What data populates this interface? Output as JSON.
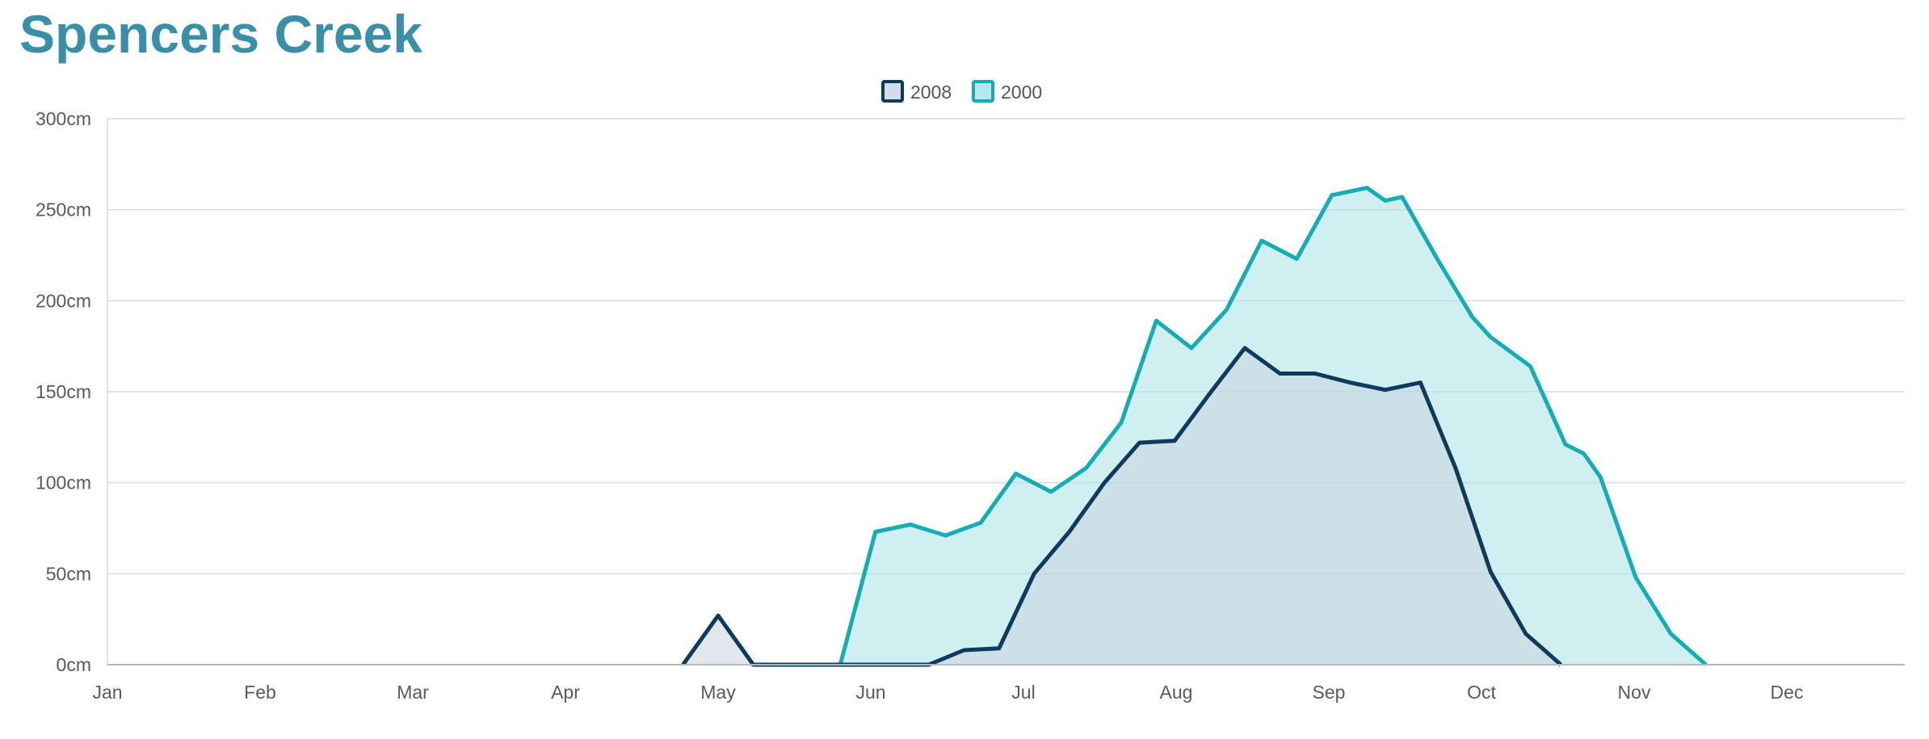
{
  "title": "Spencers Creek",
  "chart_data": {
    "type": "area",
    "title": "Spencers Creek",
    "xlabel": "",
    "ylabel": "",
    "x_tick_labels": [
      "Jan",
      "Feb",
      "Mar",
      "Apr",
      "May",
      "Jun",
      "Jul",
      "Aug",
      "Sep",
      "Oct",
      "Nov",
      "Dec"
    ],
    "y_tick_labels": [
      "0cm",
      "50cm",
      "100cm",
      "150cm",
      "200cm",
      "250cm",
      "300cm"
    ],
    "y_ticks": [
      0,
      50,
      100,
      150,
      200,
      250,
      300
    ],
    "ylim": [
      0,
      300
    ],
    "xlim": [
      1,
      13
    ],
    "x_unit": "month (1 = Jan 1, fractional)",
    "grid": true,
    "legend_position": "top-center",
    "series": [
      {
        "name": "2008",
        "color": "#0d3b5e",
        "fill": "#c8d4de",
        "points": [
          [
            4.77,
            0
          ],
          [
            5.0,
            27
          ],
          [
            5.23,
            0
          ],
          [
            5.46,
            0
          ],
          [
            5.69,
            0
          ],
          [
            5.92,
            0
          ],
          [
            6.15,
            0
          ],
          [
            6.38,
            0
          ],
          [
            6.61,
            8
          ],
          [
            6.84,
            9
          ],
          [
            7.07,
            50
          ],
          [
            7.3,
            73
          ],
          [
            7.53,
            100
          ],
          [
            7.76,
            122
          ],
          [
            7.99,
            123
          ],
          [
            8.22,
            149
          ],
          [
            8.45,
            174
          ],
          [
            8.68,
            160
          ],
          [
            8.91,
            160
          ],
          [
            9.14,
            155
          ],
          [
            9.37,
            151
          ],
          [
            9.6,
            155
          ],
          [
            9.83,
            108
          ],
          [
            10.06,
            51
          ],
          [
            10.29,
            17
          ],
          [
            10.52,
            0
          ]
        ]
      },
      {
        "name": "2000",
        "color": "#14adb5",
        "fill": "#a8e2e5",
        "points": [
          [
            5.8,
            0
          ],
          [
            6.03,
            73
          ],
          [
            6.26,
            77
          ],
          [
            6.49,
            71
          ],
          [
            6.72,
            78
          ],
          [
            6.95,
            105
          ],
          [
            7.18,
            95
          ],
          [
            7.41,
            108
          ],
          [
            7.64,
            133
          ],
          [
            7.87,
            189
          ],
          [
            8.1,
            174
          ],
          [
            8.33,
            195
          ],
          [
            8.56,
            233
          ],
          [
            8.79,
            223
          ],
          [
            9.02,
            258
          ],
          [
            9.25,
            262
          ],
          [
            9.37,
            255
          ],
          [
            9.48,
            257
          ],
          [
            9.71,
            223
          ],
          [
            9.94,
            191
          ],
          [
            10.06,
            180
          ],
          [
            10.32,
            164
          ],
          [
            10.55,
            121
          ],
          [
            10.67,
            116
          ],
          [
            10.78,
            103
          ],
          [
            11.01,
            48
          ],
          [
            11.24,
            17
          ],
          [
            11.47,
            0
          ]
        ]
      }
    ]
  }
}
